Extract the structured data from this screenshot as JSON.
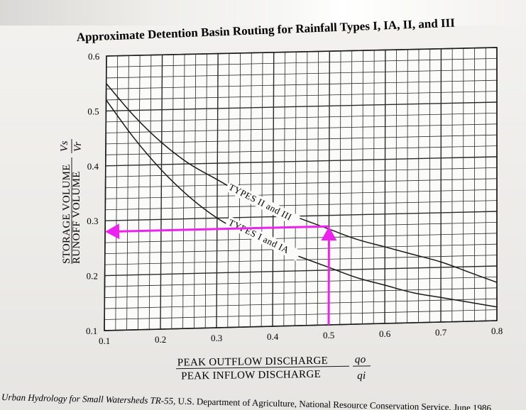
{
  "chart_data": {
    "type": "line",
    "title": "Approximate Detention Basin Routing for Rainfall Types I, IA, II, and III",
    "ylabel_lines": [
      "STORAGE VOLUME",
      "RUNOFF VOLUME"
    ],
    "ylabel_ratio": {
      "numerator": "Vs",
      "denominator": "Vr"
    },
    "xlabel_lines": [
      "PEAK OUTFLOW DISCHARGE",
      "PEAK INFLOW DISCHARGE"
    ],
    "xlabel_ratio": {
      "numerator": "qo",
      "denominator": "qi"
    },
    "xlim": [
      0.1,
      0.8
    ],
    "ylim": [
      0.1,
      0.6
    ],
    "x_ticks": [
      0.1,
      0.2,
      0.3,
      0.4,
      0.5,
      0.6,
      0.7,
      0.8
    ],
    "y_ticks": [
      0.1,
      0.2,
      0.3,
      0.4,
      0.5,
      0.6
    ],
    "x_tick_labels": [
      "0.1",
      "0.2",
      "0.3",
      "0.4",
      "0.5",
      "0.6",
      "0.7",
      "0.8"
    ],
    "y_tick_labels": [
      "0.1",
      "0.2",
      "0.3",
      "0.4",
      "0.5",
      "0.6"
    ],
    "grid": true,
    "series": [
      {
        "name": "TYPES II and III",
        "x": [
          0.1,
          0.15,
          0.2,
          0.25,
          0.3,
          0.35,
          0.4,
          0.45,
          0.5,
          0.55,
          0.6,
          0.65,
          0.7,
          0.75,
          0.8
        ],
        "values": [
          0.55,
          0.49,
          0.44,
          0.4,
          0.37,
          0.34,
          0.315,
          0.295,
          0.275,
          0.255,
          0.24,
          0.225,
          0.21,
          0.19,
          0.17
        ]
      },
      {
        "name": "TYPES I and IA",
        "x": [
          0.1,
          0.15,
          0.2,
          0.25,
          0.3,
          0.35,
          0.4,
          0.45,
          0.5,
          0.55,
          0.6,
          0.65,
          0.7,
          0.75,
          0.8
        ],
        "values": [
          0.52,
          0.45,
          0.39,
          0.34,
          0.3,
          0.27,
          0.245,
          0.225,
          0.205,
          0.185,
          0.17,
          0.155,
          0.145,
          0.135,
          0.125
        ]
      }
    ],
    "annotations": [
      {
        "kind": "arrow",
        "from": [
          0.5,
          0.1
        ],
        "to": [
          0.5,
          0.28
        ],
        "color": "#ee22ee"
      },
      {
        "kind": "arrow",
        "from": [
          0.5,
          0.28
        ],
        "to": [
          0.1,
          0.28
        ],
        "color": "#ee22ee"
      }
    ]
  },
  "caption": {
    "italic_part": "Urban Hydrology for Small Watersheds TR-55,",
    "rest": " U.S. Department of Agriculture, National Resource Conservation Service, June 1986"
  },
  "colors": {
    "annotation": "#ee22ee",
    "ink": "#1a1a1a",
    "grid": "#2a2a2a"
  }
}
